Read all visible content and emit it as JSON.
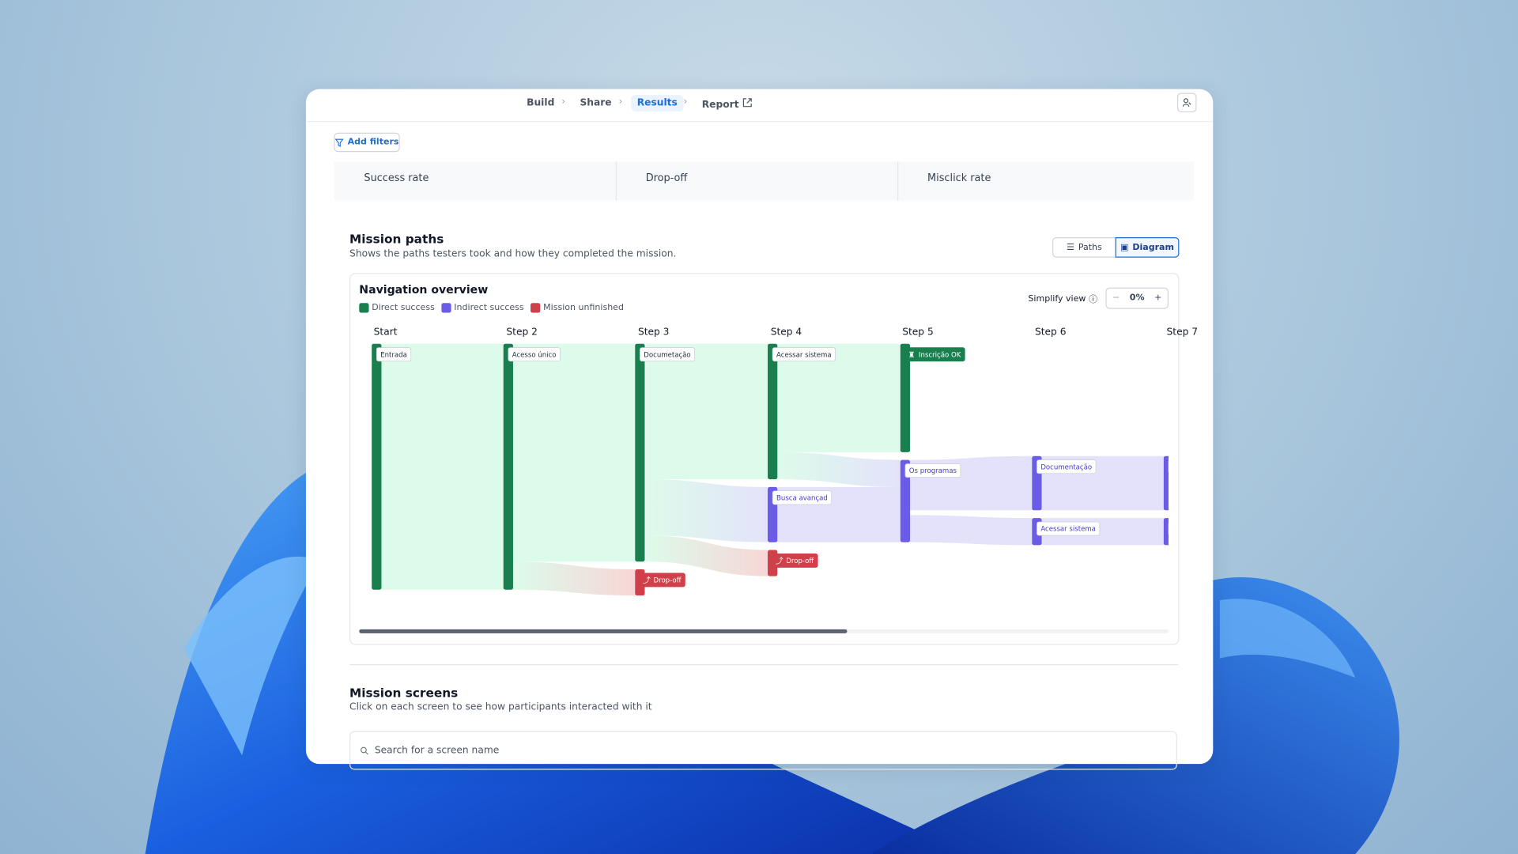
{
  "nav": {
    "steps": [
      "Build",
      "Share",
      "Results",
      "Report"
    ]
  },
  "filters": {
    "button": "Add filters"
  },
  "metrics": [
    "Success rate",
    "Drop-off",
    "Misclick rate"
  ],
  "mission_paths": {
    "title": "Mission paths",
    "subtitle": "Shows the paths testers took and how they completed the mission.",
    "views": [
      "Paths",
      "Diagram"
    ]
  },
  "navigation_overview": {
    "title": "Navigation overview",
    "legend": [
      "Direct success",
      "Indirect success",
      "Mission unfinished"
    ],
    "simplify": {
      "label": "Simplify view",
      "value": "0%"
    },
    "steps": [
      "Start",
      "Step 2",
      "Step 3",
      "Step 4",
      "Step 5",
      "Step 6",
      "Step 7"
    ],
    "nodes": [
      {
        "label": "Entrada"
      },
      {
        "label": "Acesso único"
      },
      {
        "label": "Documetação"
      },
      {
        "label": "Drop-off"
      },
      {
        "label": "Acessar sistema"
      },
      {
        "label": "Busca avançad"
      },
      {
        "label": "Drop-off"
      },
      {
        "label": "Inscrição OK"
      },
      {
        "label": "Os programas"
      },
      {
        "label": "Documentação"
      },
      {
        "label": "Acessar sistema"
      }
    ]
  },
  "mission_screens": {
    "title": "Mission screens",
    "subtitle": "Click on each screen to see how participants interacted with it",
    "search_placeholder": "Search for a screen name"
  }
}
